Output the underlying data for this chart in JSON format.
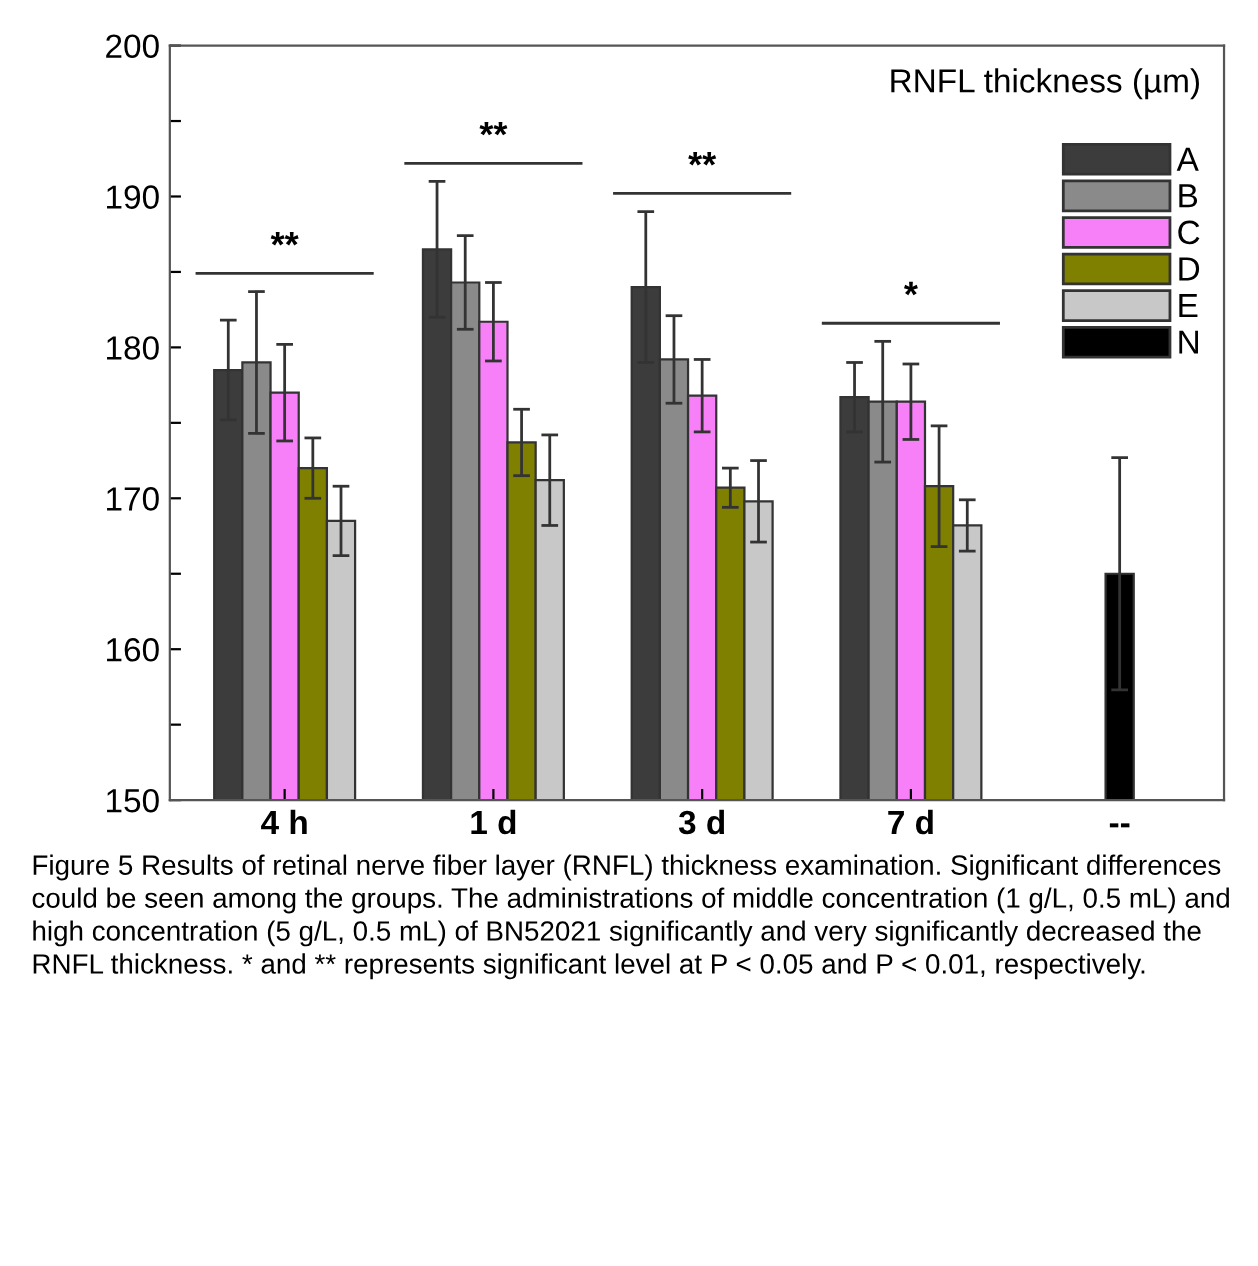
{
  "chart_data": {
    "type": "bar",
    "title": "RNFL thickness (µm)",
    "categories": [
      "4 h",
      "1 d",
      "3 d",
      "7 d",
      "--"
    ],
    "series": [
      {
        "name": "A",
        "color": "#3c3c3c",
        "values": [
          178.5,
          186.5,
          184.0,
          176.7,
          null
        ],
        "errors": [
          3.3,
          4.5,
          5.0,
          2.3,
          null
        ]
      },
      {
        "name": "B",
        "color": "#8a8a8a",
        "values": [
          179.0,
          184.3,
          179.2,
          176.4,
          null
        ],
        "errors": [
          4.7,
          3.1,
          2.9,
          4.0,
          null
        ]
      },
      {
        "name": "C",
        "color": "#f77ff7",
        "values": [
          177.0,
          181.7,
          176.8,
          176.4,
          null
        ],
        "errors": [
          3.2,
          2.6,
          2.4,
          2.5,
          null
        ]
      },
      {
        "name": "D",
        "color": "#7f7f00",
        "values": [
          172.0,
          173.7,
          170.7,
          170.8,
          null
        ],
        "errors": [
          2.0,
          2.2,
          1.3,
          4.0,
          null
        ]
      },
      {
        "name": "E",
        "color": "#c8c8c8",
        "values": [
          168.5,
          171.2,
          169.8,
          168.2,
          null
        ],
        "errors": [
          2.3,
          3.0,
          2.7,
          1.7,
          null
        ]
      },
      {
        "name": "N",
        "color": "#000000",
        "values": [
          null,
          null,
          null,
          null,
          165.0
        ],
        "errors": [
          null,
          null,
          null,
          null,
          7.7
        ]
      }
    ],
    "ylim": [
      150,
      200
    ],
    "yticks": [
      150,
      {
        "value": 155,
        "label": null
      },
      160,
      {
        "value": 165,
        "label": null
      },
      170,
      {
        "value": 175,
        "label": null
      },
      180,
      {
        "value": 185,
        "label": null
      },
      190,
      {
        "value": 195,
        "label": null
      },
      200
    ],
    "legend": "top right",
    "grid": false,
    "annotations": [
      "**",
      "**",
      "**",
      "*",
      "Figure 5 Results of retinal nerve fiber layer (RNFL) thickness examination. Significant differences could be seen among the groups. The administrations of middle concentration (1 g/L, 0.5 mL) and high concentration (5 g/L, 0.5 mL) of BN52021 significantly and very significantly decreased the RNFL thickness. * and ** represents significant level at P < 0.05 and P < 0.01, respectively."
    ]
  }
}
